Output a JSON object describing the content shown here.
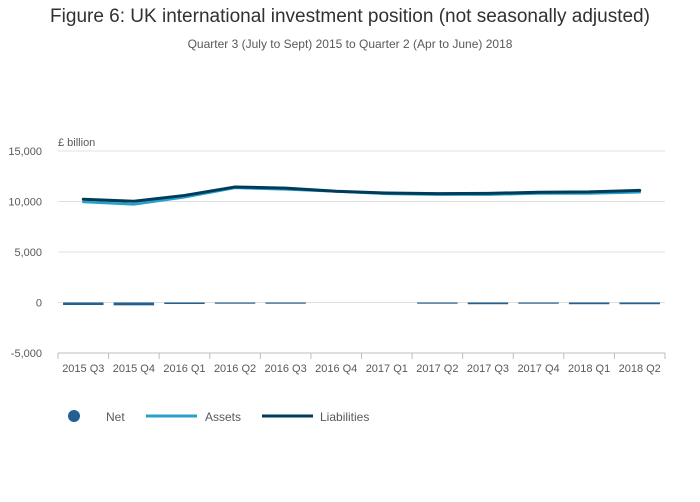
{
  "chart_data": {
    "type": "bar+line",
    "title": "Figure 6: UK international investment position (not seasonally adjusted)",
    "subtitle": "Quarter 3 (July to Sept) 2015 to Quarter 2 (Apr to June) 2018",
    "ylabel": "£ billion",
    "ylim": [
      -5000,
      15000
    ],
    "yticks": [
      15000,
      10000,
      5000,
      0,
      -5000
    ],
    "ytick_labels": [
      "15,000",
      "10,000",
      "5,000",
      "0",
      "-5,000"
    ],
    "categories": [
      "2015 Q3",
      "2015 Q4",
      "2016 Q1",
      "2016 Q2",
      "2016 Q3",
      "2016 Q4",
      "2017 Q1",
      "2017 Q2",
      "2017 Q3",
      "2017 Q4",
      "2018 Q1",
      "2018 Q2"
    ],
    "series": [
      {
        "name": "Net",
        "kind": "bar",
        "color": "#206095",
        "values": [
          -250,
          -280,
          -150,
          -100,
          -100,
          0,
          0,
          -80,
          -170,
          -80,
          -170,
          -170
        ]
      },
      {
        "name": "Assets",
        "kind": "line",
        "color": "#27a0cc",
        "values": [
          9950,
          9720,
          10420,
          11350,
          11200,
          11000,
          10760,
          10680,
          10680,
          10800,
          10800,
          10920
        ]
      },
      {
        "name": "Liabilities",
        "kind": "line",
        "color": "#003c57",
        "values": [
          10220,
          10020,
          10600,
          11440,
          11330,
          11010,
          10840,
          10780,
          10800,
          10920,
          10950,
          11100
        ]
      }
    ],
    "legend": [
      "Net",
      "Assets",
      "Liabilities"
    ],
    "legend_position": "bottom-left"
  }
}
